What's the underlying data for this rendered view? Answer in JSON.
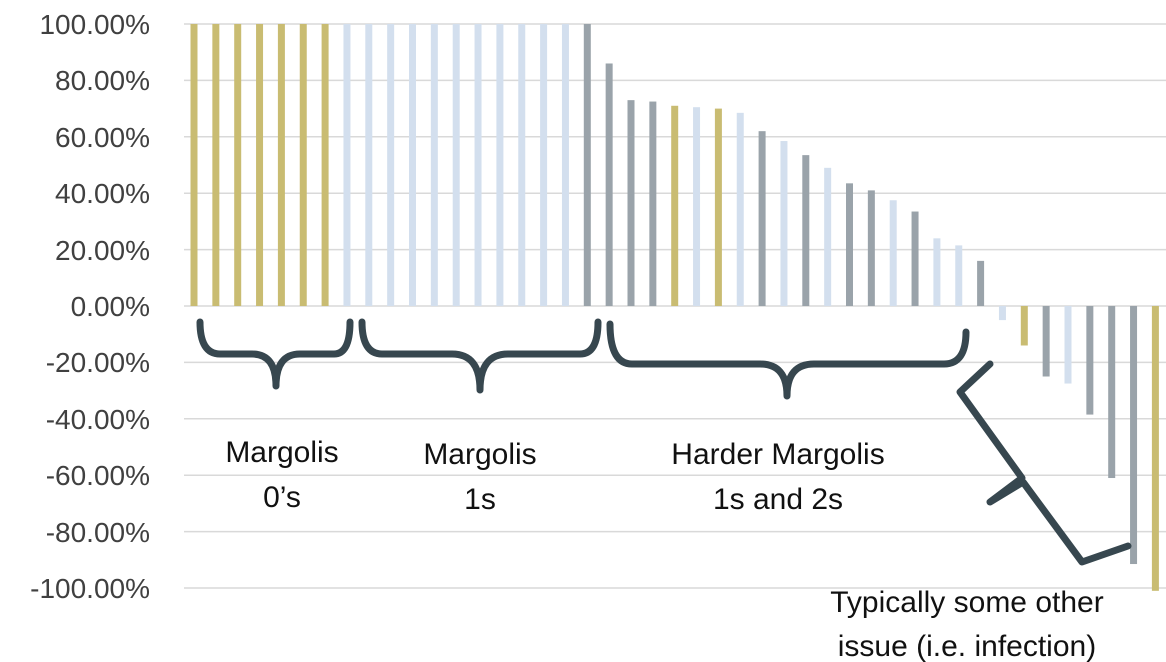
{
  "chart_data": {
    "type": "bar",
    "ylim": [
      -1.0,
      1.0
    ],
    "y_ticks": [
      "100.00%",
      "80.00%",
      "60.00%",
      "40.00%",
      "20.00%",
      "0.00%",
      "-20.00%",
      "-40.00%",
      "-60.00%",
      "-80.00%",
      "-100.00%"
    ],
    "y_tick_values": [
      1.0,
      0.8,
      0.6,
      0.4,
      0.2,
      0.0,
      -0.2,
      -0.4,
      -0.6,
      -0.8,
      -1.0
    ],
    "grid": true,
    "legend": "none",
    "colors": {
      "gold": "#c9bc72",
      "light": "#d3dfee",
      "gray": "#9aa3aa"
    },
    "values": [
      1.0,
      1.0,
      1.0,
      1.0,
      1.0,
      1.0,
      1.0,
      1.0,
      1.0,
      1.0,
      1.0,
      1.0,
      1.0,
      1.0,
      1.0,
      1.0,
      1.0,
      1.0,
      1.0,
      0.86,
      0.73,
      0.725,
      0.71,
      0.705,
      0.7,
      0.685,
      0.62,
      0.585,
      0.535,
      0.49,
      0.435,
      0.41,
      0.375,
      0.335,
      0.24,
      0.215,
      0.16,
      -0.05,
      -0.14,
      -0.25,
      -0.275,
      -0.385,
      -0.61,
      -0.915,
      -1.01
    ],
    "bar_colors": [
      "gold",
      "gold",
      "gold",
      "gold",
      "gold",
      "gold",
      "gold",
      "light",
      "light",
      "light",
      "light",
      "light",
      "light",
      "light",
      "light",
      "light",
      "light",
      "light",
      "gray",
      "gray",
      "gray",
      "gray",
      "gold",
      "light",
      "gold",
      "light",
      "gray",
      "light",
      "gray",
      "light",
      "gray",
      "gray",
      "light",
      "gray",
      "light",
      "light",
      "gray",
      "light",
      "gold",
      "gray",
      "light",
      "gray",
      "gray",
      "gray",
      "gold"
    ],
    "annotations": [
      {
        "lines": [
          "Margolis",
          "0’s"
        ]
      },
      {
        "lines": [
          "Margolis",
          "1s"
        ]
      },
      {
        "lines": [
          "Harder Margolis",
          "1s and 2s"
        ]
      },
      {
        "lines": [
          "Typically some other",
          "issue (i.e. infection)"
        ]
      }
    ]
  }
}
